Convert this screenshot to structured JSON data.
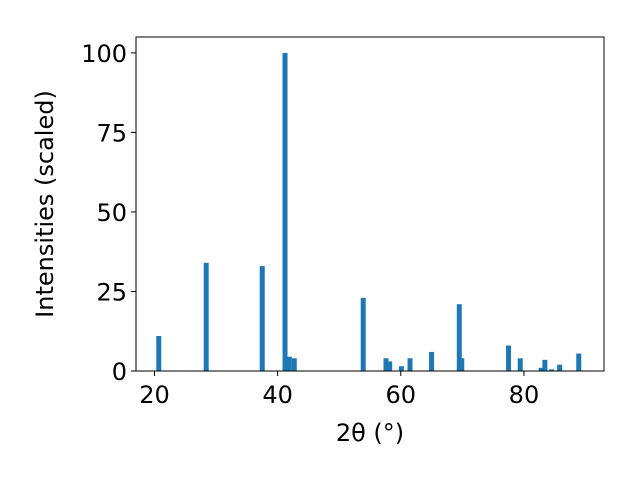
{
  "chart_data": {
    "type": "bar",
    "xlabel": "2θ (°)",
    "ylabel": "Intensities (scaled)",
    "xlim": [
      17,
      93
    ],
    "ylim": [
      0,
      105
    ],
    "xticks": [
      20,
      40,
      60,
      80
    ],
    "yticks": [
      0,
      25,
      50,
      75,
      100
    ],
    "bar_color": "#1f77b4",
    "grid": false,
    "x": [
      20.7,
      28.4,
      37.5,
      41.2,
      41.9,
      42.7,
      53.9,
      57.6,
      58.2,
      60.1,
      61.5,
      65.0,
      69.5,
      69.9,
      77.5,
      79.4,
      82.8,
      83.4,
      84.5,
      85.8,
      88.9
    ],
    "values": [
      11,
      34,
      33,
      100,
      4.5,
      4,
      23,
      4,
      3,
      1.5,
      4,
      6,
      21,
      4,
      8,
      4,
      1,
      3.5,
      0.5,
      2,
      5.5
    ]
  }
}
